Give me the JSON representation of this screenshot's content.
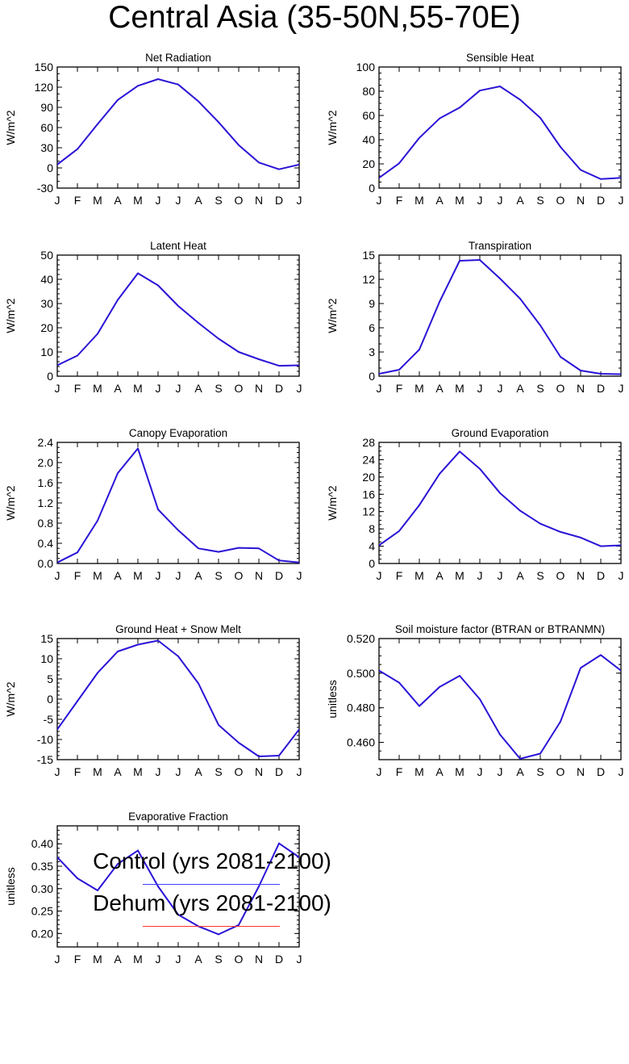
{
  "title": "Central Asia (35-50N,55-70E)",
  "months": [
    "J",
    "F",
    "M",
    "A",
    "M",
    "J",
    "J",
    "A",
    "S",
    "O",
    "N",
    "D",
    "J"
  ],
  "legend": [
    {
      "label": "Control (yrs 2081-2100)",
      "color": "#4040ff"
    },
    {
      "label": "Dehum (yrs 2081-2100)",
      "color": "#ff3030"
    }
  ],
  "series_colors": {
    "control": "#2a14d6",
    "dehum": "#ff3030"
  },
  "chart_data": [
    {
      "type": "line",
      "title": "Net Radiation",
      "ylabel": "W/m^2",
      "ylim": [
        -30,
        150
      ],
      "yticks": [
        -30,
        0,
        30,
        60,
        90,
        120,
        150
      ],
      "ytick_labels": [
        "-30",
        "0",
        "30",
        "60",
        "90",
        "120",
        "150"
      ],
      "minor_step": 10,
      "categories": [
        "J",
        "F",
        "M",
        "A",
        "M",
        "J",
        "J",
        "A",
        "S",
        "O",
        "N",
        "D",
        "J"
      ],
      "series": [
        {
          "name": "Control (yrs 2081-2100)",
          "values": [
            5,
            28,
            65,
            101,
            122,
            132,
            124,
            99,
            68,
            34,
            8,
            -2,
            5
          ]
        }
      ]
    },
    {
      "type": "line",
      "title": "Sensible Heat",
      "ylabel": "W/m^2",
      "ylim": [
        0,
        100
      ],
      "yticks": [
        0,
        20,
        40,
        60,
        80,
        100
      ],
      "ytick_labels": [
        "0",
        "20",
        "40",
        "60",
        "80",
        "100"
      ],
      "minor_step": 5,
      "categories": [
        "J",
        "F",
        "M",
        "A",
        "M",
        "J",
        "J",
        "A",
        "S",
        "O",
        "N",
        "D",
        "J"
      ],
      "series": [
        {
          "name": "Control (yrs 2081-2100)",
          "values": [
            8.5,
            20.5,
            41.5,
            57.5,
            66.5,
            80.5,
            84,
            73,
            58,
            34,
            15,
            7.5,
            8.5
          ]
        }
      ]
    },
    {
      "type": "line",
      "title": "Latent Heat",
      "ylabel": "W/m^2",
      "ylim": [
        0,
        50
      ],
      "yticks": [
        0,
        10,
        20,
        30,
        40,
        50
      ],
      "ytick_labels": [
        "0",
        "10",
        "20",
        "30",
        "40",
        "50"
      ],
      "minor_step": 2,
      "categories": [
        "J",
        "F",
        "M",
        "A",
        "M",
        "J",
        "J",
        "A",
        "S",
        "O",
        "N",
        "D",
        "J"
      ],
      "series": [
        {
          "name": "Control (yrs 2081-2100)",
          "values": [
            4.5,
            8.5,
            17.5,
            31.5,
            42.5,
            37.5,
            29,
            22,
            15.5,
            10,
            7,
            4.3,
            4.5
          ]
        }
      ]
    },
    {
      "type": "line",
      "title": "Transpiration",
      "ylabel": "W/m^2",
      "ylim": [
        0,
        15
      ],
      "yticks": [
        0,
        3,
        6,
        9,
        12,
        15
      ],
      "ytick_labels": [
        "0",
        "3",
        "6",
        "9",
        "12",
        "15"
      ],
      "minor_step": 1,
      "categories": [
        "J",
        "F",
        "M",
        "A",
        "M",
        "J",
        "J",
        "A",
        "S",
        "O",
        "N",
        "D",
        "J"
      ],
      "series": [
        {
          "name": "Control (yrs 2081-2100)",
          "values": [
            0.3,
            0.8,
            3.3,
            9.2,
            14.3,
            14.4,
            12.1,
            9.6,
            6.3,
            2.4,
            0.7,
            0.3,
            0.25
          ]
        }
      ]
    },
    {
      "type": "line",
      "title": "Canopy Evaporation",
      "ylabel": "W/m^2",
      "ylim": [
        0,
        2.4
      ],
      "yticks": [
        0,
        0.4,
        0.8,
        1.2,
        1.6,
        2.0,
        2.4
      ],
      "ytick_labels": [
        "0.0",
        "0.4",
        "0.8",
        "1.2",
        "1.6",
        "2.0",
        "2.4"
      ],
      "minor_step": 0.1,
      "categories": [
        "J",
        "F",
        "M",
        "A",
        "M",
        "J",
        "J",
        "A",
        "S",
        "O",
        "N",
        "D",
        "J"
      ],
      "series": [
        {
          "name": "Control (yrs 2081-2100)",
          "values": [
            0.02,
            0.22,
            0.85,
            1.79,
            2.28,
            1.07,
            0.66,
            0.3,
            0.23,
            0.31,
            0.3,
            0.06,
            0.02
          ]
        }
      ]
    },
    {
      "type": "line",
      "title": "Ground Evaporation",
      "ylabel": "W/m^2",
      "ylim": [
        0,
        28
      ],
      "yticks": [
        0,
        4,
        8,
        12,
        16,
        20,
        24,
        28
      ],
      "ytick_labels": [
        "0",
        "4",
        "8",
        "12",
        "16",
        "20",
        "24",
        "28"
      ],
      "minor_step": 1,
      "categories": [
        "J",
        "F",
        "M",
        "A",
        "M",
        "J",
        "J",
        "A",
        "S",
        "O",
        "N",
        "D",
        "J"
      ],
      "series": [
        {
          "name": "Control (yrs 2081-2100)",
          "values": [
            4.2,
            7.5,
            13.5,
            20.7,
            25.9,
            21.9,
            16.3,
            12.2,
            9.2,
            7.3,
            6.0,
            4.0,
            4.2
          ]
        }
      ]
    },
    {
      "type": "line",
      "title": "Ground Heat + Snow Melt",
      "ylabel": "W/m^2",
      "ylim": [
        -15,
        15
      ],
      "yticks": [
        -15,
        -10,
        -5,
        0,
        5,
        10,
        15
      ],
      "ytick_labels": [
        "-15",
        "-10",
        "-5",
        "0",
        "5",
        "10",
        "15"
      ],
      "minor_step": 1,
      "categories": [
        "J",
        "F",
        "M",
        "A",
        "M",
        "J",
        "J",
        "A",
        "S",
        "O",
        "N",
        "D",
        "J"
      ],
      "series": [
        {
          "name": "Control (yrs 2081-2100)",
          "values": [
            -7.5,
            -0.5,
            6.5,
            11.8,
            13.5,
            14.5,
            10.6,
            3.9,
            -6.4,
            -10.8,
            -14.2,
            -14,
            -7.5
          ]
        }
      ]
    },
    {
      "type": "line",
      "title": "Soil moisture factor (BTRAN or BTRANMN)",
      "ylabel": "unitless",
      "ylim": [
        0.45,
        0.52
      ],
      "yticks": [
        0.46,
        0.48,
        0.5,
        0.52
      ],
      "ytick_labels": [
        "0.460",
        "0.480",
        "0.500",
        "0.520"
      ],
      "minor_step": 0.005,
      "categories": [
        "J",
        "F",
        "M",
        "A",
        "M",
        "J",
        "J",
        "A",
        "S",
        "O",
        "N",
        "D",
        "J"
      ],
      "series": [
        {
          "name": "Control (yrs 2081-2100)",
          "values": [
            0.5015,
            0.4945,
            0.481,
            0.492,
            0.4985,
            0.485,
            0.4645,
            0.4505,
            0.4535,
            0.472,
            0.503,
            0.5105,
            0.5015
          ]
        }
      ]
    },
    {
      "type": "line",
      "title": "Evaporative Fraction",
      "ylabel": "unitless",
      "ylim": [
        0.17,
        0.44
      ],
      "yticks": [
        0.2,
        0.25,
        0.3,
        0.35,
        0.4
      ],
      "ytick_labels": [
        "0.20",
        "0.25",
        "0.30",
        "0.35",
        "0.40"
      ],
      "minor_step": 0.01,
      "categories": [
        "J",
        "F",
        "M",
        "A",
        "M",
        "J",
        "J",
        "A",
        "S",
        "O",
        "N",
        "D",
        "J"
      ],
      "series": [
        {
          "name": "Control (yrs 2081-2100)",
          "values": [
            0.37,
            0.323,
            0.296,
            0.355,
            0.385,
            0.305,
            0.242,
            0.216,
            0.198,
            0.219,
            0.305,
            0.401,
            0.37
          ]
        }
      ]
    }
  ]
}
